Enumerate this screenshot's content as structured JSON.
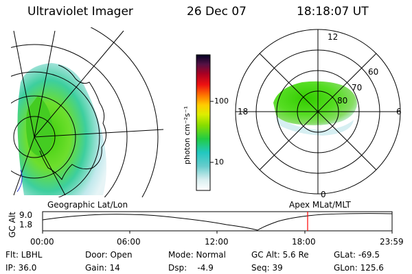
{
  "header": {
    "instrument": "Ultraviolet Imager",
    "date": "26 Dec 07",
    "time": "18:18:07 UT"
  },
  "colorbar": {
    "unit_label": "photon cm⁻²s⁻¹",
    "ticks": [
      "100",
      "10"
    ]
  },
  "polar_plot": {
    "mlt_labels": {
      "top": "12",
      "right": "6",
      "bottom": "0",
      "left": "18"
    },
    "lat_labels": [
      "60",
      "70",
      "80"
    ]
  },
  "timeline": {
    "left_caption": "Geographic Lat/Lon",
    "right_caption": "Apex  MLat/MLT",
    "y_label": "GC Alt",
    "y_ticks": [
      "9.0",
      "1.8"
    ],
    "x_ticks": [
      "00:00",
      "06:00",
      "12:00",
      "18:00",
      "23:59"
    ],
    "current_marker_color": "#ff0000"
  },
  "params": {
    "filter": "Flt: LBHL",
    "ip": "IP: 36.0",
    "door": "Door: Open",
    "gain": "Gain: 14",
    "mode": "Mode: Normal",
    "dsp": "Dsp:    -4.9",
    "gc_alt": "GC Alt: 5.6 Re",
    "seq": "Seq: 39",
    "glat": "GLat: -69.5",
    "glon": "GLon: 125.6"
  }
}
